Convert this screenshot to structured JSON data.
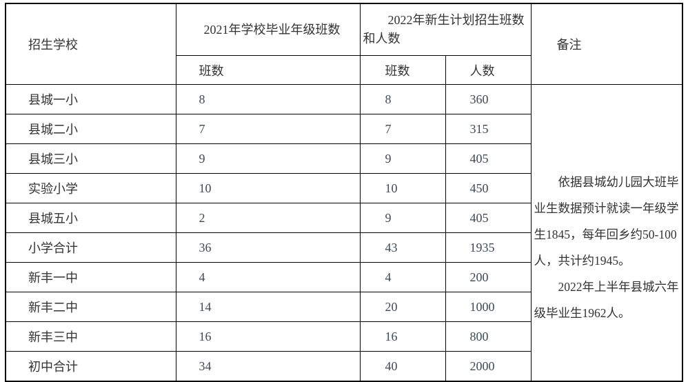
{
  "colors": {
    "background": "#ffffff",
    "border": "#000000",
    "text": "#333333",
    "number_text": "#3e4a58"
  },
  "table": {
    "header": {
      "school": "招生学校",
      "grad2021": "2021年学校毕业年级班数",
      "plan2022": "2022年新生计划招生班数和人数",
      "remark": "备注",
      "sub_classes_2021": "班数",
      "sub_classes_2022": "班数",
      "sub_students": "人数"
    },
    "rows": [
      {
        "school": "县城一小",
        "grad_classes": "8",
        "plan_classes": "8",
        "plan_students": "360"
      },
      {
        "school": "县城二小",
        "grad_classes": "7",
        "plan_classes": "7",
        "plan_students": "315"
      },
      {
        "school": "县城三小",
        "grad_classes": "9",
        "plan_classes": "9",
        "plan_students": "405"
      },
      {
        "school": "实验小学",
        "grad_classes": "10",
        "plan_classes": "10",
        "plan_students": "450"
      },
      {
        "school": "县城五小",
        "grad_classes": "2",
        "plan_classes": "9",
        "plan_students": "405"
      },
      {
        "school": "小学合计",
        "grad_classes": "36",
        "plan_classes": "43",
        "plan_students": "1935"
      },
      {
        "school": "新丰一中",
        "grad_classes": "4",
        "plan_classes": "4",
        "plan_students": "200"
      },
      {
        "school": "新丰二中",
        "grad_classes": "14",
        "plan_classes": "20",
        "plan_students": "1000"
      },
      {
        "school": "新丰三中",
        "grad_classes": "16",
        "plan_classes": "16",
        "plan_students": "800"
      },
      {
        "school": "初中合计",
        "grad_classes": "34",
        "plan_classes": "40",
        "plan_students": "2000"
      }
    ],
    "remark": {
      "p1": "依据县城幼儿园大班毕业生数据预计就读一年级学生1845，每年回乡约50-100人，共计约1945。",
      "p2": "2022年上半年县城六年级毕业生1962人。"
    }
  }
}
